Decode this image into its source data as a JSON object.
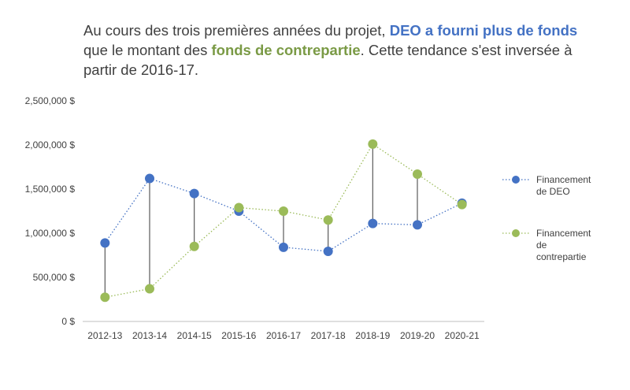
{
  "title": {
    "part1": "Au cours des trois premières années du projet, ",
    "highlight_deo": "DEO a fourni plus de fonds",
    "part2": " que le montant des ",
    "highlight_match": "fonds de contrepartie",
    "part3": ". Cette tendance s'est inversée à partir de 2016-17."
  },
  "chart_data": {
    "type": "line",
    "categories": [
      "2012-13",
      "2013-14",
      "2014-15",
      "2015-16",
      "2016-17",
      "2017-18",
      "2018-19",
      "2019-20",
      "2020-21"
    ],
    "series": [
      {
        "name": "Financement de DEO",
        "color": "#4472C4",
        "values": [
          890000,
          1620000,
          1450000,
          1250000,
          840000,
          795000,
          1110000,
          1095000,
          1340000
        ],
        "legend_lines": [
          "Financement",
          "de DEO"
        ]
      },
      {
        "name": "Financement de contrepartie",
        "color": "#9BBB59",
        "values": [
          275000,
          370000,
          850000,
          1290000,
          1250000,
          1150000,
          2010000,
          1670000,
          1325000
        ],
        "legend_lines": [
          "Financement",
          "de",
          "contrepartie"
        ]
      }
    ],
    "y_ticks": [
      "0 $",
      "500,000 $",
      "1,000,000 $",
      "1,500,000 $",
      "2,000,000 $",
      "2,500,000 $"
    ],
    "y_tick_values": [
      0,
      500000,
      1000000,
      1500000,
      2000000,
      2500000
    ],
    "ylim": [
      0,
      2500000
    ],
    "drop_line_color": "#595959",
    "legend_position": "right"
  }
}
